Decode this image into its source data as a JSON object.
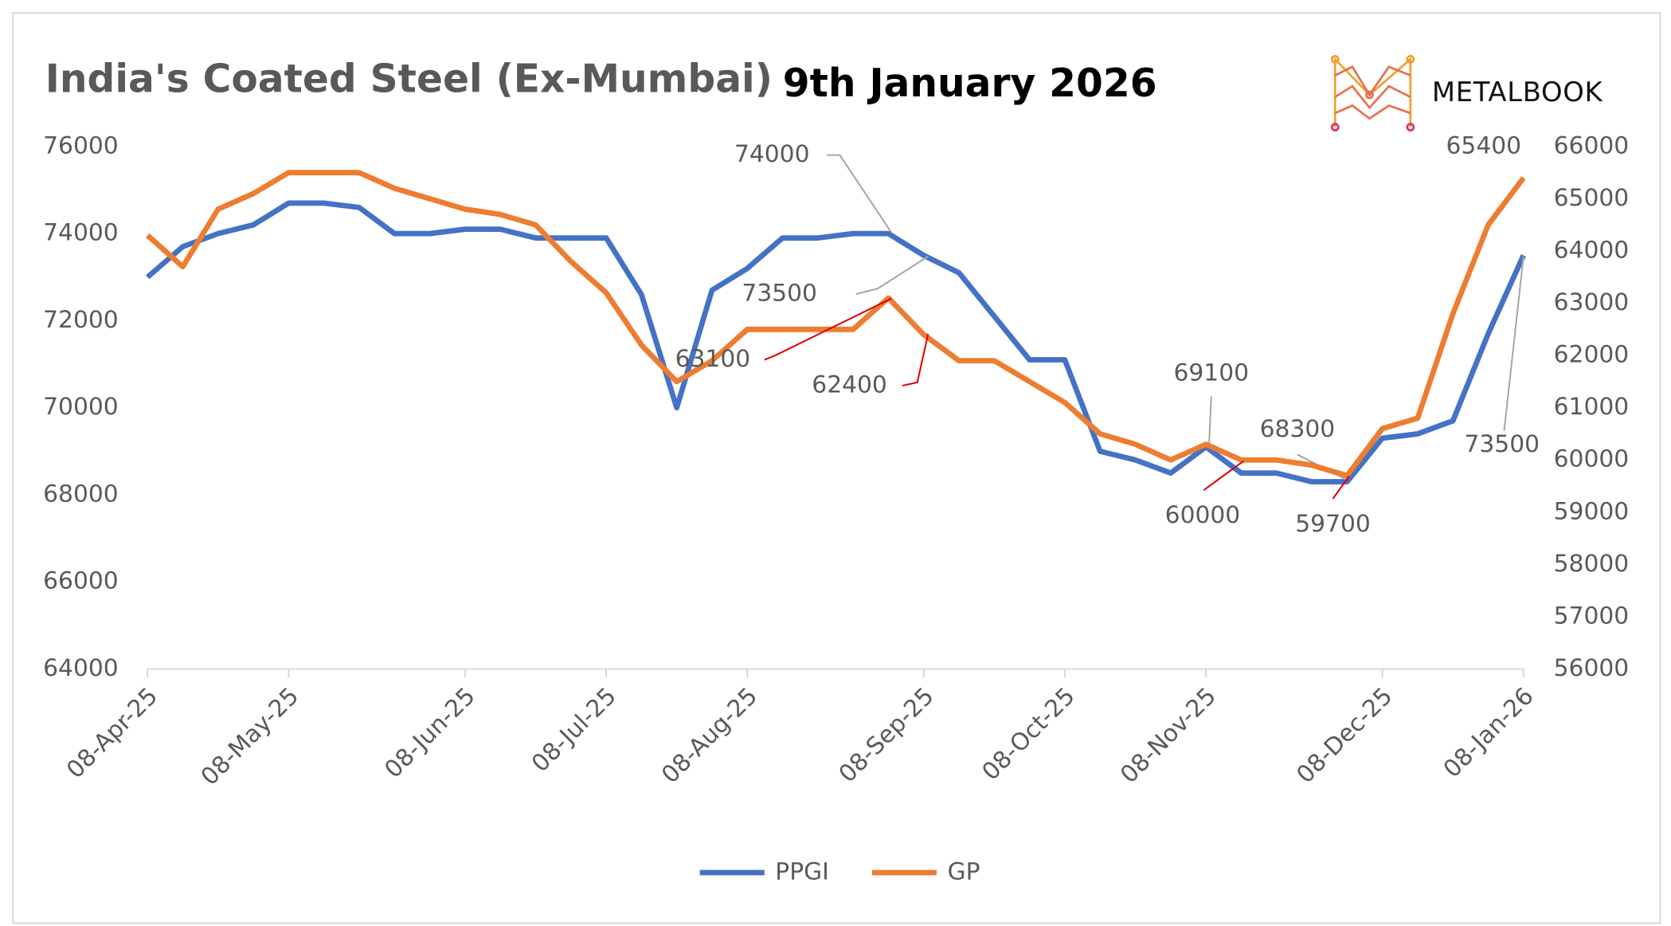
{
  "chart_data": {
    "type": "line",
    "title": "India's Coated Steel (Ex-Mumbai)",
    "subtitle": "9th January 2026",
    "logo": "METALBOOK",
    "categories": [
      "08-Apr-25",
      null,
      null,
      null,
      "08-May-25",
      null,
      null,
      null,
      null,
      "08-Jun-25",
      null,
      null,
      null,
      "08-Jul-25",
      null,
      null,
      null,
      "08-Aug-25",
      null,
      null,
      null,
      null,
      "08-Sep-25",
      null,
      null,
      null,
      "08-Oct-25",
      null,
      null,
      null,
      "08-Nov-25",
      null,
      null,
      null,
      null,
      "08-Dec-25",
      null,
      null,
      null,
      "08-Jan-26"
    ],
    "series": [
      {
        "name": "PPGI",
        "color": "#4472c4",
        "axis": "y",
        "label_points": [
          21,
          22,
          30,
          34,
          39
        ],
        "values": [
          73000,
          73700,
          74000,
          74200,
          74700,
          74700,
          74600,
          74000,
          74000,
          74100,
          74100,
          73900,
          73900,
          73900,
          72600,
          70000,
          72700,
          73200,
          73900,
          73900,
          74000,
          74000,
          73500,
          73100,
          72100,
          71100,
          71100,
          69000,
          68800,
          68500,
          69100,
          68500,
          68500,
          68300,
          68300,
          69300,
          69400,
          69700,
          71700,
          73500
        ]
      },
      {
        "name": "GP",
        "color": "#ed7d31",
        "axis": "y2",
        "label_points": [
          21,
          22,
          31,
          34,
          39
        ],
        "values": [
          64300,
          63700,
          64800,
          65100,
          65500,
          65500,
          65500,
          65200,
          65000,
          64800,
          64700,
          64500,
          63800,
          63200,
          62200,
          61500,
          61900,
          62500,
          62500,
          62500,
          62500,
          63100,
          62400,
          61900,
          61900,
          61500,
          61100,
          60500,
          60300,
          60000,
          60300,
          60000,
          60000,
          59900,
          59700,
          60600,
          60800,
          62800,
          64500,
          65400
        ]
      }
    ],
    "ylim": [
      64000,
      76000
    ],
    "yticks": [
      64000,
      66000,
      68000,
      70000,
      72000,
      74000,
      76000
    ],
    "y2lim": [
      56000,
      66000
    ],
    "y2ticks": [
      56000,
      57000,
      58000,
      59000,
      60000,
      61000,
      62000,
      63000,
      64000,
      65000,
      66000
    ],
    "legend": "bottom",
    "grid": false
  }
}
